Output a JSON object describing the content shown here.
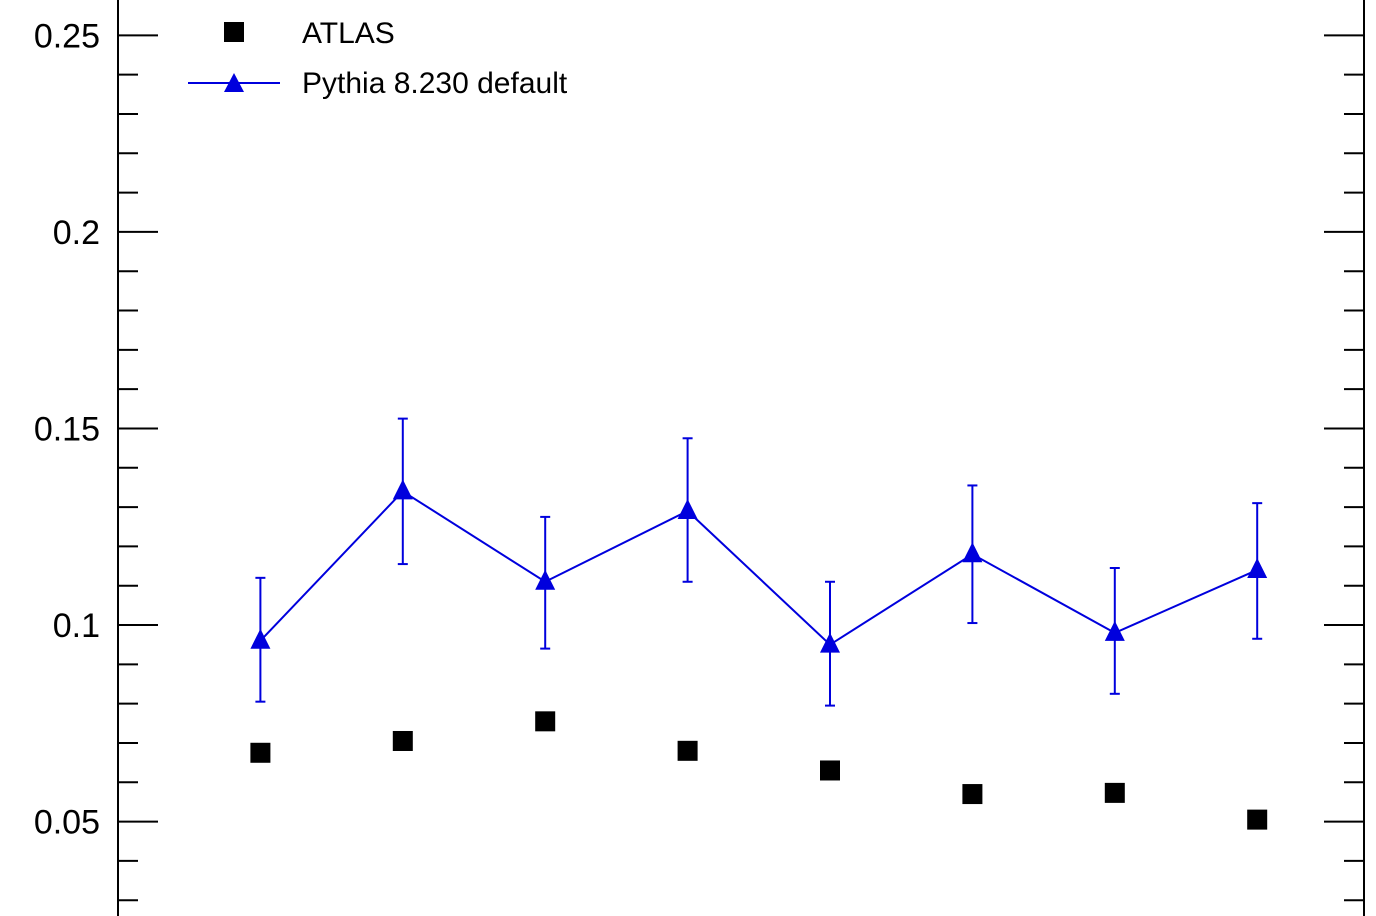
{
  "chart_data": {
    "type": "scatter",
    "title": "",
    "xlabel": "",
    "ylabel": "",
    "ylim": [
      0.027,
      0.26
    ],
    "y_major_ticks": [
      0.05,
      0.1,
      0.15,
      0.2,
      0.25
    ],
    "y_tick_labels": [
      "0.05",
      "0.1",
      "0.15",
      "0.2",
      "0.25"
    ],
    "y_minor_step": 0.01,
    "x": [
      1,
      2,
      3,
      4,
      5,
      6,
      7,
      8
    ],
    "xlim": [
      0.0,
      8.75
    ],
    "grid": false,
    "legend_position": "top-left",
    "series": [
      {
        "name": "ATLAS",
        "marker": "square",
        "color": "#000000",
        "line": false,
        "values": [
          0.0675,
          0.0705,
          0.0755,
          0.068,
          0.063,
          0.057,
          0.0573,
          0.0505
        ]
      },
      {
        "name": "Pythia 8.230 default",
        "marker": "triangle",
        "color": "#0000dd",
        "line": true,
        "values": [
          0.096,
          0.134,
          0.111,
          0.129,
          0.095,
          0.118,
          0.098,
          0.114
        ],
        "err_low": [
          0.0805,
          0.1155,
          0.094,
          0.111,
          0.0795,
          0.1005,
          0.0825,
          0.0965
        ],
        "err_high": [
          0.112,
          0.1525,
          0.1275,
          0.1475,
          0.111,
          0.1355,
          0.1145,
          0.131
        ]
      }
    ]
  }
}
